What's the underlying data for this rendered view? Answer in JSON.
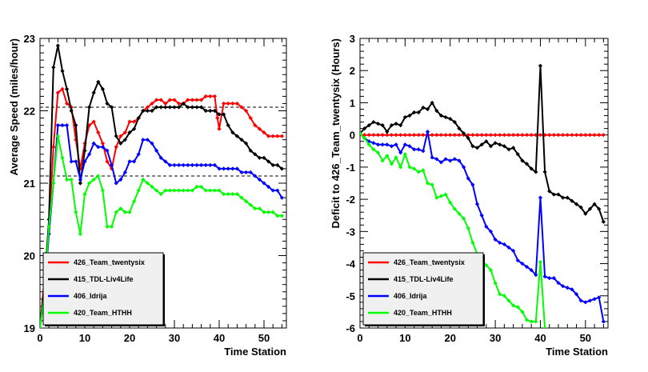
{
  "chart_data": [
    {
      "type": "line",
      "xlabel": "Time Station",
      "ylabel": "Average Speed (miles/hour)",
      "xlim": [
        0,
        55
      ],
      "ylim": [
        19,
        23
      ],
      "xticks": [
        "0",
        "10",
        "20",
        "30",
        "40",
        "50"
      ],
      "yticks": [
        "19",
        "20",
        "21",
        "22",
        "23"
      ],
      "reference_lines": [
        21.1,
        22.05
      ],
      "legend_position": "bottom-left",
      "series": [
        {
          "name": "426_Team_twentysix",
          "color": "#ff0000",
          "x": [
            0,
            1,
            2,
            3,
            4,
            5,
            6,
            7,
            8,
            9,
            10,
            11,
            12,
            13,
            14,
            15,
            16,
            17,
            18,
            19,
            20,
            21,
            22,
            23,
            24,
            25,
            26,
            27,
            28,
            29,
            30,
            31,
            32,
            33,
            34,
            35,
            36,
            37,
            38,
            39,
            39.6,
            40,
            41,
            42,
            43,
            44,
            45,
            46,
            47,
            48,
            49,
            50,
            51,
            52,
            53,
            54
          ],
          "y": [
            19.0,
            19.7,
            20.4,
            21.5,
            22.25,
            22.3,
            22.1,
            22.05,
            21.6,
            21.2,
            21.55,
            21.8,
            21.85,
            21.7,
            21.55,
            21.3,
            21.2,
            21.5,
            21.65,
            21.7,
            21.85,
            21.85,
            21.9,
            22.0,
            22.05,
            22.1,
            22.15,
            22.15,
            22.1,
            22.15,
            22.15,
            22.1,
            22.1,
            22.15,
            22.15,
            22.15,
            22.15,
            22.2,
            22.2,
            22.2,
            21.9,
            21.75,
            22.1,
            22.1,
            22.1,
            22.1,
            22.05,
            22.0,
            21.9,
            21.8,
            21.75,
            21.7,
            21.65,
            21.65,
            21.65,
            21.65
          ]
        },
        {
          "name": "415_TDL-Liv4Life",
          "color": "#000000",
          "x": [
            0,
            1,
            2,
            3,
            4,
            5,
            6,
            7,
            8,
            9,
            10,
            11,
            12,
            13,
            14,
            15,
            16,
            17,
            18,
            19,
            20,
            21,
            22,
            23,
            24,
            25,
            26,
            27,
            28,
            29,
            30,
            31,
            32,
            33,
            34,
            35,
            36,
            37,
            38,
            39,
            40,
            41,
            42,
            43,
            44,
            45,
            46,
            47,
            48,
            49,
            50,
            51,
            52,
            53,
            54
          ],
          "y": [
            19.0,
            19.6,
            20.5,
            22.6,
            22.9,
            22.55,
            22.3,
            22.0,
            21.8,
            21.0,
            21.45,
            22.05,
            22.25,
            22.4,
            22.3,
            22.1,
            22.05,
            21.65,
            21.55,
            21.6,
            21.7,
            21.75,
            21.9,
            22.0,
            22.0,
            22.0,
            22.05,
            22.05,
            22.05,
            22.05,
            22.05,
            22.05,
            22.1,
            22.05,
            22.05,
            22.05,
            22.05,
            22.0,
            22.0,
            22.0,
            21.95,
            21.95,
            21.8,
            21.7,
            21.65,
            21.6,
            21.55,
            21.45,
            21.4,
            21.35,
            21.35,
            21.3,
            21.25,
            21.25,
            21.2
          ]
        },
        {
          "name": "406_Idrija",
          "color": "#0000ff",
          "x": [
            0,
            1,
            2,
            3,
            4,
            5,
            6,
            7,
            8,
            9,
            10,
            11,
            12,
            13,
            14,
            15,
            16,
            17,
            18,
            19,
            20,
            21,
            22,
            23,
            24,
            25,
            26,
            27,
            28,
            29,
            30,
            31,
            32,
            33,
            34,
            35,
            36,
            37,
            38,
            39,
            40,
            41,
            42,
            43,
            44,
            45,
            46,
            47,
            48,
            49,
            50,
            51,
            52,
            53,
            54
          ],
          "y": [
            19.0,
            19.5,
            20.3,
            21.0,
            21.8,
            21.8,
            21.8,
            21.3,
            21.3,
            21.05,
            21.3,
            21.4,
            21.55,
            21.5,
            21.5,
            21.45,
            21.25,
            21.0,
            21.05,
            21.15,
            21.3,
            21.3,
            21.4,
            21.6,
            21.6,
            21.55,
            21.45,
            21.35,
            21.3,
            21.25,
            21.25,
            21.25,
            21.25,
            21.25,
            21.25,
            21.25,
            21.25,
            21.25,
            21.25,
            21.25,
            21.2,
            21.2,
            21.2,
            21.2,
            21.2,
            21.15,
            21.15,
            21.15,
            21.1,
            21.05,
            21.0,
            20.95,
            20.9,
            20.9,
            20.8
          ]
        },
        {
          "name": "420_Team_HTHH",
          "color": "#00ff00",
          "x": [
            0,
            1,
            2,
            3,
            4,
            5,
            6,
            7,
            8,
            9,
            10,
            11,
            12,
            13,
            14,
            15,
            16,
            17,
            18,
            19,
            20,
            21,
            22,
            23,
            24,
            25,
            26,
            27,
            28,
            29,
            30,
            31,
            32,
            33,
            34,
            35,
            36,
            37,
            38,
            39,
            40,
            41,
            42,
            43,
            44,
            45,
            46,
            47,
            48,
            49,
            50,
            51,
            52,
            53,
            54
          ],
          "y": [
            19.0,
            19.5,
            20.4,
            21.0,
            21.65,
            21.35,
            21.05,
            21.05,
            20.6,
            20.3,
            20.85,
            21.0,
            21.05,
            21.1,
            20.9,
            20.4,
            20.4,
            20.6,
            20.65,
            20.6,
            20.6,
            20.75,
            20.9,
            21.05,
            21.0,
            20.95,
            20.9,
            20.85,
            20.9,
            20.9,
            20.9,
            20.9,
            20.9,
            20.9,
            20.9,
            20.95,
            20.95,
            20.9,
            20.9,
            20.9,
            20.9,
            20.85,
            20.85,
            20.85,
            20.85,
            20.8,
            20.75,
            20.7,
            20.65,
            20.65,
            20.6,
            20.6,
            20.6,
            20.55,
            20.55
          ]
        }
      ]
    },
    {
      "type": "line",
      "xlabel": "Time Station",
      "ylabel": "Deficit to 426_Team_twentysix (Hours)",
      "xlim": [
        0,
        55
      ],
      "ylim": [
        -6,
        3
      ],
      "xticks": [
        "0",
        "10",
        "20",
        "30",
        "40",
        "50"
      ],
      "yticks": [
        "-6",
        "-5",
        "-4",
        "-3",
        "-2",
        "-1",
        "0",
        "1",
        "2",
        "3"
      ],
      "legend_position": "bottom-left",
      "series": [
        {
          "name": "426_Team_twentysix",
          "color": "#ff0000",
          "x": [
            0,
            1,
            2,
            3,
            4,
            5,
            6,
            7,
            8,
            9,
            10,
            11,
            12,
            13,
            14,
            15,
            16,
            17,
            18,
            19,
            20,
            21,
            22,
            23,
            24,
            25,
            26,
            27,
            28,
            29,
            30,
            31,
            32,
            33,
            34,
            35,
            36,
            37,
            38,
            39,
            40,
            41,
            42,
            43,
            44,
            45,
            46,
            47,
            48,
            49,
            50,
            51,
            52,
            53,
            54
          ],
          "y": [
            0,
            0,
            0,
            0,
            0,
            0,
            0,
            0,
            0,
            0,
            0,
            0,
            0,
            0,
            0,
            0,
            0,
            0,
            0,
            0,
            0,
            0,
            0,
            0,
            0,
            0,
            0,
            0,
            0,
            0,
            0,
            0,
            0,
            0,
            0,
            0,
            0,
            0,
            0,
            0,
            0,
            0,
            0,
            0,
            0,
            0,
            0,
            0,
            0,
            0,
            0,
            0,
            0,
            0,
            0
          ]
        },
        {
          "name": "415_TDL-Liv4Life",
          "color": "#000000",
          "x": [
            0,
            1,
            2,
            3,
            4,
            5,
            6,
            7,
            8,
            9,
            10,
            11,
            12,
            13,
            14,
            15,
            16,
            17,
            18,
            19,
            20,
            21,
            22,
            23,
            24,
            25,
            26,
            27,
            28,
            29,
            30,
            31,
            32,
            33,
            34,
            35,
            36,
            37,
            38,
            39,
            40,
            41,
            42,
            43,
            44,
            45,
            46,
            47,
            48,
            49,
            50,
            51,
            52,
            53,
            54
          ],
          "y": [
            0.05,
            0.2,
            0.3,
            0.4,
            0.35,
            0.3,
            0.1,
            0.3,
            0.35,
            0.3,
            0.55,
            0.6,
            0.7,
            0.7,
            0.85,
            0.8,
            1.0,
            0.75,
            0.6,
            0.55,
            0.5,
            0.4,
            0.2,
            0.05,
            -0.1,
            -0.35,
            -0.4,
            -0.3,
            -0.2,
            -0.35,
            -0.25,
            -0.3,
            -0.35,
            -0.45,
            -0.4,
            -0.6,
            -0.8,
            -0.9,
            -1.05,
            -1.15,
            2.15,
            -1.15,
            -1.75,
            -1.85,
            -1.85,
            -1.95,
            -1.95,
            -2.05,
            -2.15,
            -2.25,
            -2.45,
            -2.3,
            -2.15,
            -2.3,
            -2.7
          ]
        },
        {
          "name": "406_Idrija",
          "color": "#0000ff",
          "x": [
            0,
            1,
            2,
            3,
            4,
            5,
            6,
            7,
            8,
            9,
            10,
            11,
            12,
            13,
            14,
            15,
            16,
            17,
            18,
            19,
            20,
            21,
            22,
            23,
            24,
            25,
            26,
            27,
            28,
            29,
            30,
            31,
            32,
            33,
            34,
            35,
            36,
            37,
            38,
            39,
            40,
            41,
            42,
            43,
            44,
            45,
            46,
            47,
            48,
            49,
            50,
            51,
            52,
            53,
            54
          ],
          "y": [
            0.05,
            -0.1,
            -0.2,
            -0.25,
            -0.3,
            -0.3,
            -0.3,
            -0.35,
            -0.3,
            -0.55,
            -0.3,
            -0.35,
            -0.45,
            -0.45,
            -0.5,
            0.1,
            -0.7,
            -0.75,
            -0.85,
            -0.75,
            -0.8,
            -0.75,
            -0.8,
            -1.0,
            -1.35,
            -1.55,
            -2.15,
            -2.5,
            -2.85,
            -3.0,
            -3.25,
            -3.35,
            -3.4,
            -3.5,
            -3.6,
            -3.9,
            -4.0,
            -4.1,
            -4.2,
            -4.35,
            -1.95,
            -4.4,
            -4.45,
            -4.45,
            -4.6,
            -4.7,
            -4.75,
            -4.8,
            -4.95,
            -5.15,
            -5.2,
            -5.15,
            -5.1,
            -5.05,
            -5.8
          ]
        },
        {
          "name": "420_Team_HTHH",
          "color": "#00ff00",
          "x": [
            0,
            1,
            2,
            3,
            4,
            5,
            6,
            7,
            8,
            9,
            10,
            11,
            12,
            13,
            14,
            15,
            16,
            17,
            18,
            19,
            20,
            21,
            22,
            23,
            24,
            25,
            26,
            27,
            28,
            29,
            30,
            31,
            32,
            33,
            34,
            35,
            36,
            37,
            38,
            39,
            40,
            41
          ],
          "y": [
            0.05,
            -0.1,
            -0.3,
            -0.45,
            -0.55,
            -0.8,
            -0.65,
            -0.9,
            -0.7,
            -1.0,
            -0.6,
            -1.0,
            -1.05,
            -1.15,
            -1.1,
            -1.5,
            -1.55,
            -1.95,
            -1.9,
            -1.85,
            -2.1,
            -2.3,
            -2.45,
            -2.6,
            -2.9,
            -3.35,
            -3.7,
            -3.9,
            -4.05,
            -4.2,
            -4.6,
            -4.95,
            -5.0,
            -5.15,
            -5.3,
            -5.35,
            -5.5,
            -5.75,
            -5.8,
            -5.8,
            -3.95,
            -6.0
          ]
        }
      ]
    }
  ]
}
